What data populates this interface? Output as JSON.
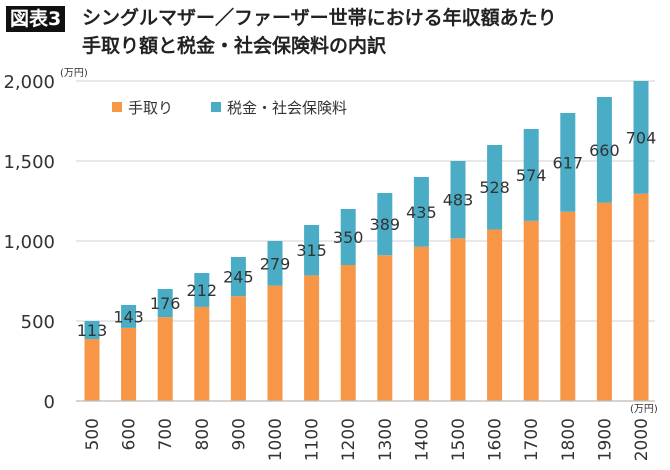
{
  "badge": "図表3",
  "title_line1": "シングルマザー／ファーザー世帯における年収額あたり",
  "title_line2": "手取り額と税金・社会保険料の内訳",
  "colors": {
    "net": "#F79646",
    "tax": "#4BACC6"
  },
  "chart_data": {
    "type": "bar",
    "stacked": true,
    "categories": [
      "500",
      "600",
      "700",
      "800",
      "900",
      "1000",
      "1100",
      "1200",
      "1300",
      "1400",
      "1500",
      "1600",
      "1700",
      "1800",
      "1900",
      "2000"
    ],
    "series": [
      {
        "name": "手取り",
        "values": [
          387,
          457,
          524,
          588,
          655,
          721,
          785,
          850,
          911,
          965,
          1017,
          1072,
          1126,
          1183,
          1240,
          1296
        ]
      },
      {
        "name": "税金・社会保険料",
        "values": [
          113,
          143,
          176,
          212,
          245,
          279,
          315,
          350,
          389,
          435,
          483,
          528,
          574,
          617,
          660,
          704
        ]
      }
    ],
    "data_labels_series": "税金・社会保険料",
    "ylim": [
      0,
      2000
    ],
    "yticks": [
      "0",
      "500",
      "1,000",
      "1,500",
      "2,000"
    ],
    "ytick_values": [
      0,
      500,
      1000,
      1500,
      2000
    ],
    "yunit": "(万円)",
    "xunit": "(万円)",
    "legend": "top-left",
    "grid": true
  }
}
